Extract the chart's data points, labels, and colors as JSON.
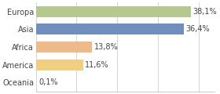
{
  "categories": [
    "Europa",
    "Asia",
    "Africa",
    "America",
    "Oceania"
  ],
  "values": [
    38.1,
    36.4,
    13.8,
    11.6,
    0.1
  ],
  "bar_colors": [
    "#b5c98e",
    "#6f8fbf",
    "#f0b989",
    "#f0d080",
    "#d4d4d4"
  ],
  "labels": [
    "38,1%",
    "36,4%",
    "13,8%",
    "11,6%",
    "0,1%"
  ],
  "xlim": [
    0,
    44
  ],
  "background_color": "#ffffff",
  "label_fontsize": 7.0,
  "tick_fontsize": 7.0,
  "bar_height": 0.62,
  "grid_lines": [
    0,
    10,
    20,
    30,
    40
  ],
  "grid_color": "#cccccc",
  "text_color": "#444444"
}
